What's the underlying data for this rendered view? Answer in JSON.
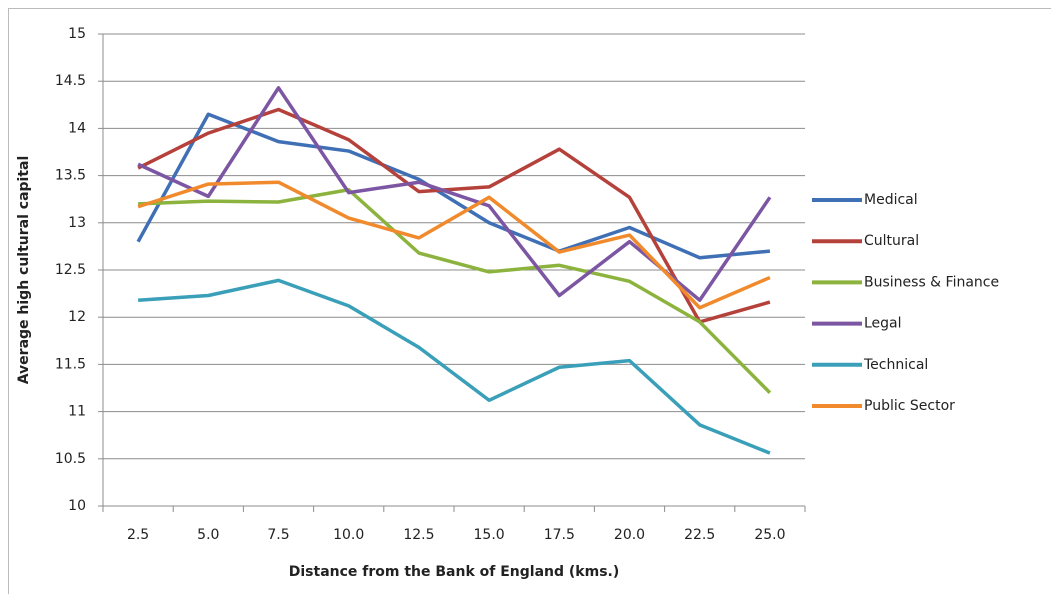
{
  "chart_data": {
    "type": "line",
    "x_label": "Distance  from the Bank  of England  (kms.)",
    "y_label": "Average high cultural capital",
    "categories": [
      "2.5",
      "5.0",
      "7.5",
      "10.0",
      "12.5",
      "15.0",
      "17.5",
      "20.0",
      "22.5",
      "25.0"
    ],
    "series": [
      {
        "name": "Medical",
        "color": "#3f6fb5",
        "values": [
          12.8,
          14.15,
          13.86,
          13.76,
          13.46,
          13.0,
          12.7,
          12.95,
          12.63,
          12.7
        ]
      },
      {
        "name": "Cultural",
        "color": "#b5413b",
        "values": [
          13.58,
          13.95,
          14.2,
          13.88,
          13.33,
          13.38,
          13.78,
          13.27,
          11.95,
          12.16
        ]
      },
      {
        "name": "Business & Finance",
        "color": "#8cb33d",
        "values": [
          13.2,
          13.23,
          13.22,
          13.35,
          12.68,
          12.48,
          12.55,
          12.38,
          11.95,
          11.2
        ]
      },
      {
        "name": "Legal",
        "color": "#7c56a3",
        "values": [
          13.62,
          13.28,
          14.43,
          13.32,
          13.43,
          13.18,
          12.23,
          12.8,
          12.18,
          13.27
        ]
      },
      {
        "name": "Technical",
        "color": "#3a9fb8",
        "values": [
          12.18,
          12.23,
          12.39,
          12.12,
          11.68,
          11.12,
          11.47,
          11.54,
          10.86,
          10.56
        ]
      },
      {
        "name": "Public Sector",
        "color": "#f08a2c",
        "values": [
          13.17,
          13.41,
          13.43,
          13.05,
          12.84,
          13.27,
          12.69,
          12.87,
          12.1,
          12.42
        ]
      }
    ],
    "ylim": [
      10,
      15
    ],
    "yticks": [
      10,
      10.5,
      11,
      11.5,
      12,
      12.5,
      13,
      13.5,
      14,
      14.5,
      15
    ],
    "grid": true,
    "legend": "right"
  }
}
